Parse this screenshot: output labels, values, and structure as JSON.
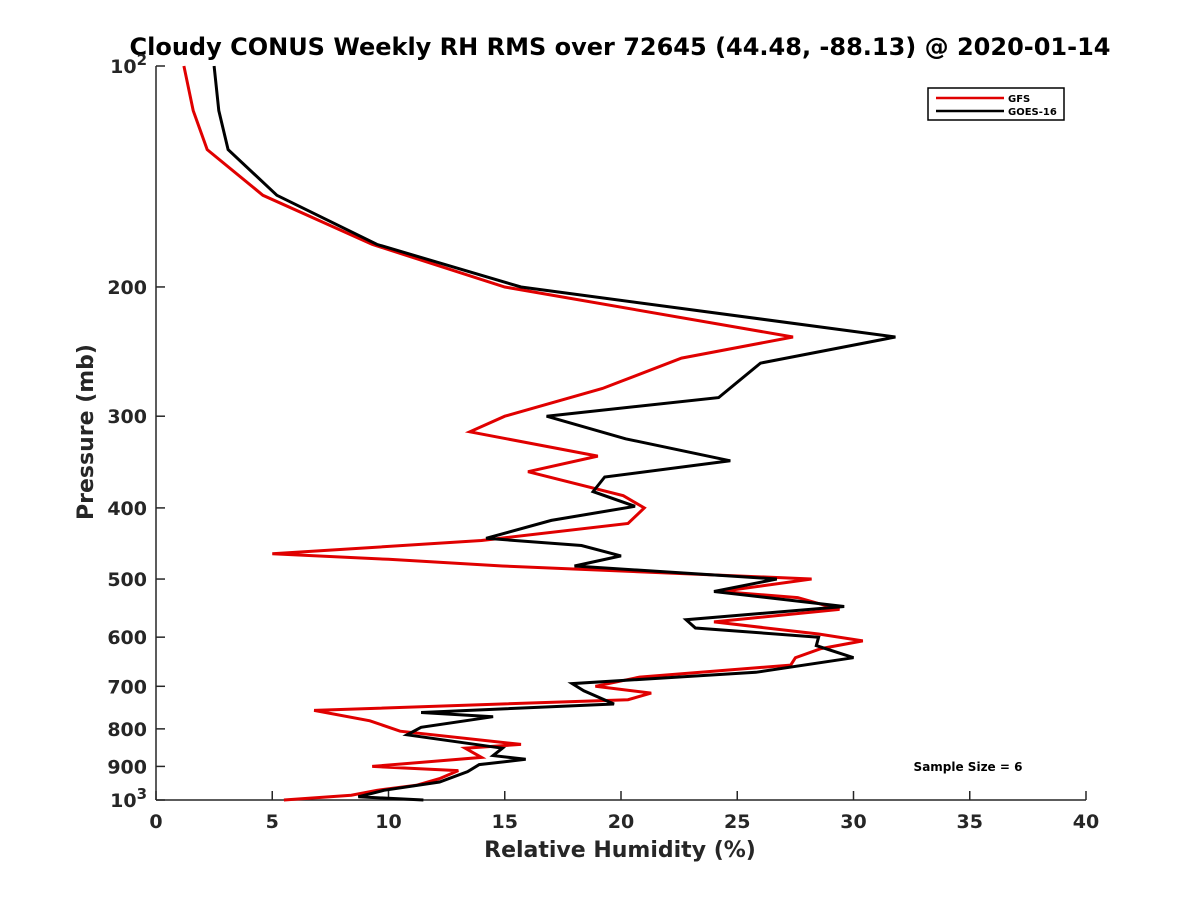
{
  "chart_data": {
    "type": "line",
    "title": "Cloudy CONUS Weekly RH RMS over 72645 (44.48, -88.13) @ 2020-01-14",
    "xlabel": "Relative Humidity (%)",
    "ylabel": "Pressure (mb)",
    "xlim": [
      0,
      40
    ],
    "ylim": [
      100,
      1000
    ],
    "y_scale": "log",
    "y_reversed": true,
    "grid": false,
    "legend_position": "top-right",
    "x_ticks": [
      "0",
      "5",
      "10",
      "15",
      "20",
      "25",
      "30",
      "35",
      "40"
    ],
    "y_ticks": [
      {
        "value": 100,
        "base": "10",
        "exp": "2"
      },
      {
        "value": 200,
        "label": "200"
      },
      {
        "value": 300,
        "label": "300"
      },
      {
        "value": 400,
        "label": "400"
      },
      {
        "value": 500,
        "label": "500"
      },
      {
        "value": 600,
        "label": "600"
      },
      {
        "value": 700,
        "label": "700"
      },
      {
        "value": 800,
        "label": "800"
      },
      {
        "value": 900,
        "label": "900"
      },
      {
        "value": 1000,
        "base": "10",
        "exp": "3"
      }
    ],
    "annotation": "Sample Size = 6",
    "series": [
      {
        "name": "GFS",
        "color": "#e00000",
        "points": [
          [
            1.2,
            100
          ],
          [
            1.6,
            115
          ],
          [
            2.2,
            130
          ],
          [
            4.6,
            150
          ],
          [
            9.3,
            175
          ],
          [
            15.0,
            200
          ],
          [
            27.4,
            234
          ],
          [
            22.6,
            250
          ],
          [
            19.2,
            275
          ],
          [
            15.0,
            300
          ],
          [
            13.5,
            315
          ],
          [
            19.0,
            340
          ],
          [
            16.0,
            357
          ],
          [
            20.1,
            385
          ],
          [
            21.0,
            400
          ],
          [
            20.3,
            420
          ],
          [
            14.0,
            443
          ],
          [
            5.0,
            462
          ],
          [
            10.0,
            470
          ],
          [
            14.9,
            480
          ],
          [
            28.2,
            500
          ],
          [
            24.3,
            520
          ],
          [
            27.6,
            530
          ],
          [
            29.4,
            550
          ],
          [
            24.0,
            572
          ],
          [
            28.5,
            594
          ],
          [
            30.4,
            607
          ],
          [
            28.6,
            622
          ],
          [
            27.5,
            640
          ],
          [
            27.3,
            655
          ],
          [
            20.8,
            680
          ],
          [
            18.9,
            700
          ],
          [
            21.3,
            715
          ],
          [
            20.3,
            730
          ],
          [
            6.8,
            755
          ],
          [
            9.2,
            780
          ],
          [
            10.5,
            806
          ],
          [
            15.7,
            840
          ],
          [
            13.3,
            850
          ],
          [
            14.0,
            875
          ],
          [
            9.3,
            900
          ],
          [
            13.0,
            912
          ],
          [
            12.2,
            935
          ],
          [
            11.2,
            955
          ],
          [
            9.5,
            970
          ],
          [
            8.4,
            985
          ],
          [
            5.5,
            1000
          ]
        ]
      },
      {
        "name": "GOES-16",
        "color": "#000000",
        "points": [
          [
            2.5,
            100
          ],
          [
            2.7,
            115
          ],
          [
            3.1,
            130
          ],
          [
            5.2,
            150
          ],
          [
            9.5,
            175
          ],
          [
            15.7,
            200
          ],
          [
            31.8,
            234
          ],
          [
            26.0,
            254
          ],
          [
            24.2,
            283
          ],
          [
            16.8,
            300
          ],
          [
            20.2,
            322
          ],
          [
            24.7,
            345
          ],
          [
            19.3,
            363
          ],
          [
            18.8,
            380
          ],
          [
            20.6,
            398
          ],
          [
            17.0,
            416
          ],
          [
            14.2,
            440
          ],
          [
            18.3,
            450
          ],
          [
            20.0,
            465
          ],
          [
            18.0,
            480
          ],
          [
            26.7,
            500
          ],
          [
            24.0,
            520
          ],
          [
            29.6,
            545
          ],
          [
            22.8,
            568
          ],
          [
            23.2,
            583
          ],
          [
            28.5,
            600
          ],
          [
            28.4,
            616
          ],
          [
            30.0,
            640
          ],
          [
            25.8,
            670
          ],
          [
            17.9,
            694
          ],
          [
            18.4,
            710
          ],
          [
            19.7,
            740
          ],
          [
            11.4,
            760
          ],
          [
            14.5,
            770
          ],
          [
            11.4,
            796
          ],
          [
            10.8,
            815
          ],
          [
            14.9,
            850
          ],
          [
            14.5,
            870
          ],
          [
            15.9,
            880
          ],
          [
            13.9,
            895
          ],
          [
            13.4,
            915
          ],
          [
            12.2,
            945
          ],
          [
            9.8,
            970
          ],
          [
            8.7,
            990
          ],
          [
            11.5,
            1000
          ]
        ]
      }
    ]
  }
}
